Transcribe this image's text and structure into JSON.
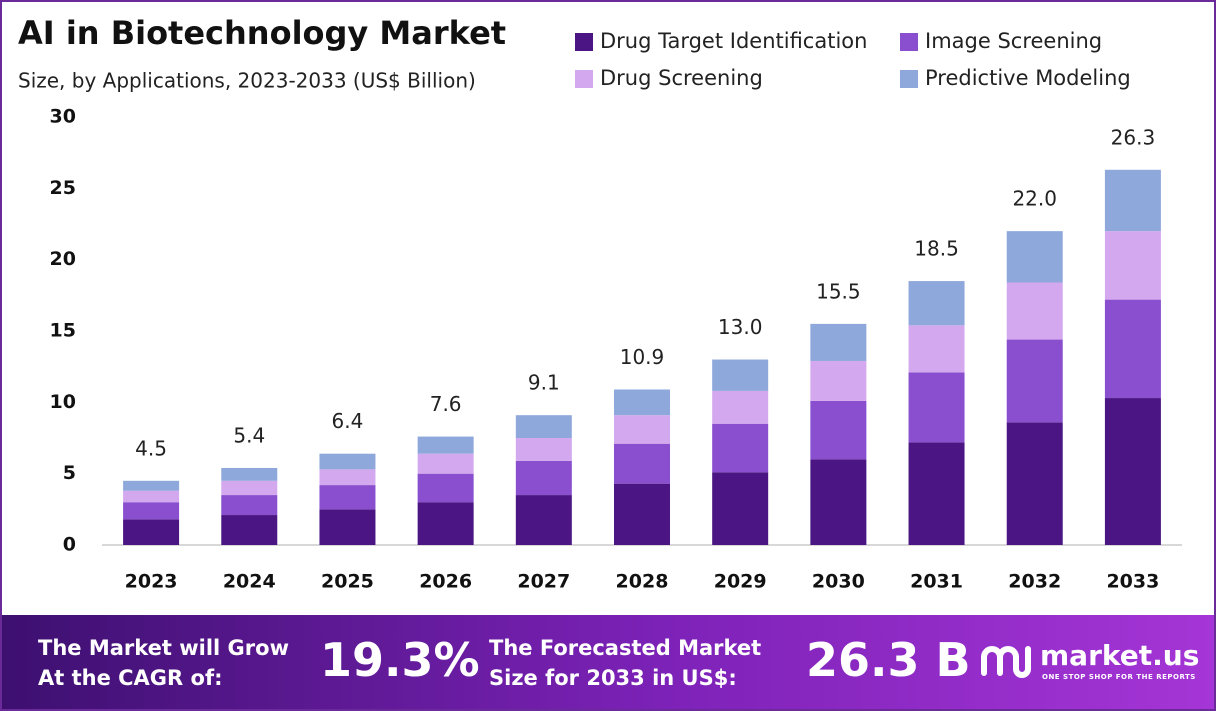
{
  "chart_data": {
    "type": "stacked_bar",
    "title": "AI in Biotechnology Market",
    "subtitle": "Size, by Applications, 2023-2033 (US$ Billion)",
    "categories": [
      "2023",
      "2024",
      "2025",
      "2026",
      "2027",
      "2028",
      "2029",
      "2030",
      "2031",
      "2032",
      "2033"
    ],
    "series": [
      {
        "name": "Drug Target Identification",
        "color": "#4b1683",
        "values": [
          1.8,
          2.1,
          2.5,
          3.0,
          3.5,
          4.3,
          5.1,
          6.0,
          7.2,
          8.6,
          10.3
        ]
      },
      {
        "name": "Image Screening",
        "color": "#8a4fcf",
        "values": [
          1.2,
          1.4,
          1.7,
          2.0,
          2.4,
          2.8,
          3.4,
          4.1,
          4.9,
          5.8,
          6.9
        ]
      },
      {
        "name": "Drug Screening",
        "color": "#d4a8ee",
        "values": [
          0.8,
          1.0,
          1.1,
          1.4,
          1.6,
          2.0,
          2.3,
          2.8,
          3.3,
          4.0,
          4.8
        ]
      },
      {
        "name": "Predictive Modeling",
        "color": "#8fa8db",
        "values": [
          0.7,
          0.9,
          1.1,
          1.2,
          1.6,
          1.8,
          2.2,
          2.6,
          3.1,
          3.6,
          4.3
        ]
      }
    ],
    "totals": {
      "values": [
        4.5,
        5.4,
        6.4,
        7.6,
        9.1,
        10.9,
        13.0,
        15.5,
        18.5,
        22.0,
        26.3
      ],
      "value_labels": [
        "4.5",
        "5.4",
        "6.4",
        "7.6",
        "9.1",
        "10.9",
        "13.0",
        "15.5",
        "18.5",
        "22.0",
        "26.3"
      ]
    },
    "ylim": [
      0,
      30
    ],
    "yticks": [
      0,
      5,
      10,
      15,
      20,
      25,
      30
    ],
    "grid": false
  },
  "footer": {
    "cagr_text": [
      "The Market will Grow",
      "At the CAGR of:"
    ],
    "cagr_value": "19.3%",
    "size_text": [
      "The Forecasted Market",
      "Size for 2033 in US$:"
    ],
    "size_value": "26.3 B",
    "brand": "market.us",
    "tagline": "ONE STOP SHOP FOR THE REPORTS"
  }
}
